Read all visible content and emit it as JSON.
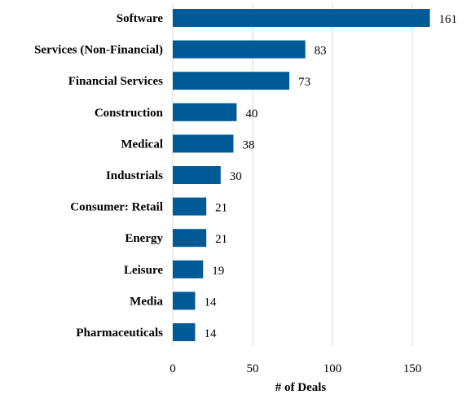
{
  "chart_data": {
    "type": "bar",
    "orientation": "horizontal",
    "categories": [
      "Software",
      "Services (Non-Financial)",
      "Financial Services",
      "Construction",
      "Medical",
      "Industrials",
      "Consumer: Retail",
      "Energy",
      "Leisure",
      "Media",
      "Pharmaceuticals"
    ],
    "values": [
      161,
      83,
      73,
      40,
      38,
      30,
      21,
      21,
      19,
      14,
      14
    ],
    "value_labels": [
      "161",
      "83",
      "73",
      "40",
      "38",
      "30",
      "21",
      "21",
      "19",
      "14",
      "14"
    ],
    "xlabel": "# of Deals",
    "ylabel": "",
    "title": "",
    "xlim": [
      0,
      175
    ],
    "x_ticks": [
      0,
      50,
      100,
      150
    ],
    "x_tick_labels": [
      "0",
      "50",
      "100",
      "150"
    ],
    "grid": "vertical gridlines",
    "legend": "none",
    "bar_color": "#005a96"
  }
}
